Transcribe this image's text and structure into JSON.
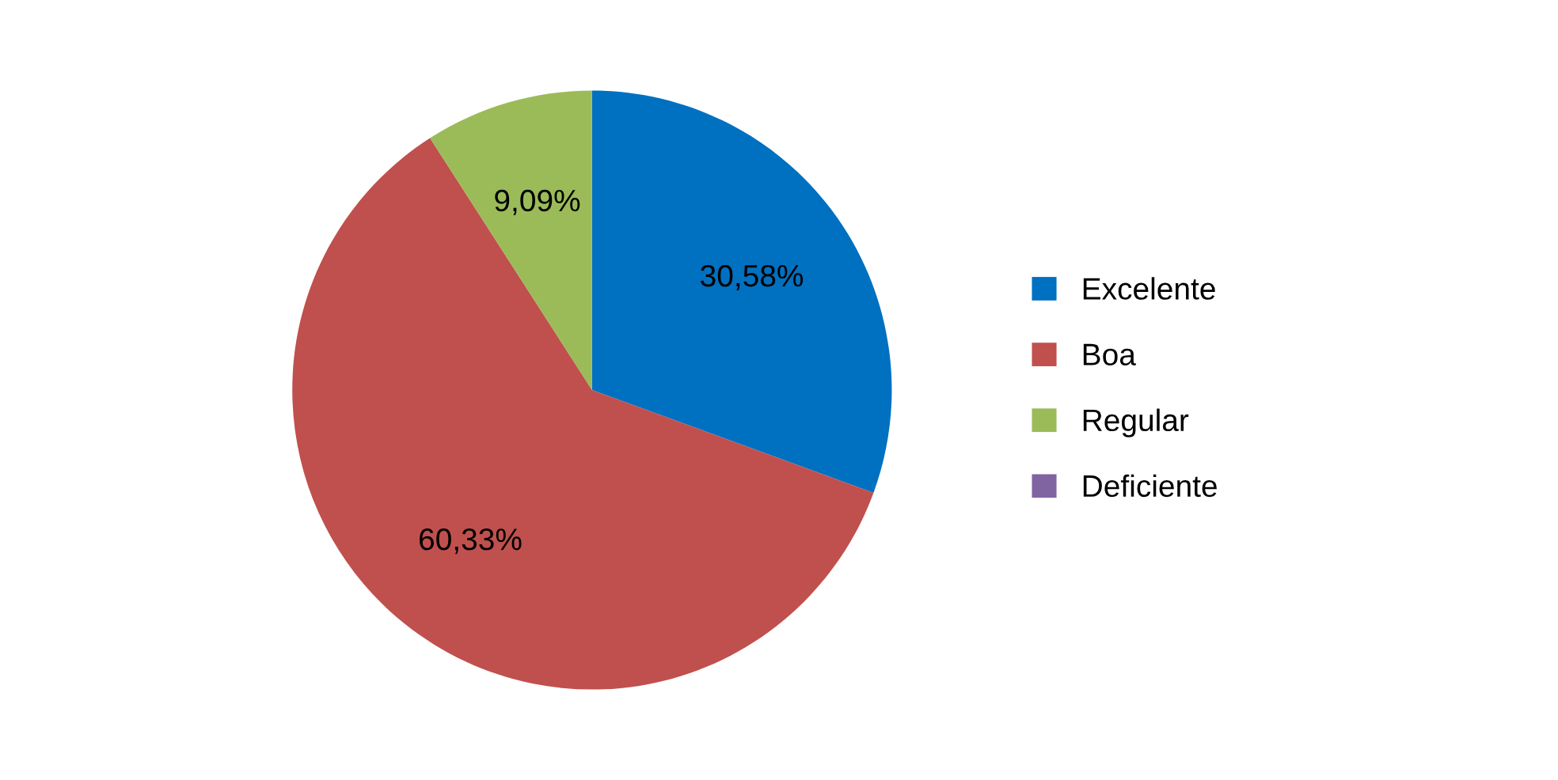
{
  "chart_data": {
    "type": "pie",
    "categories": [
      "Excelente",
      "Boa",
      "Regular",
      "Deficiente"
    ],
    "values": [
      30.58,
      60.33,
      9.09,
      0
    ],
    "colors": [
      "#0070c0",
      "#c0504d",
      "#9bbb59",
      "#8064a2"
    ],
    "value_labels": [
      "30,58%",
      "60,33%",
      "9,09%",
      null
    ],
    "legend": "right"
  }
}
